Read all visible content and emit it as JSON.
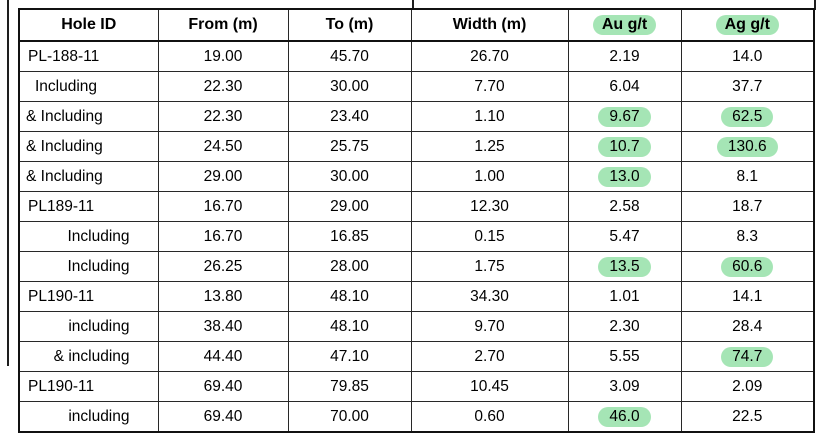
{
  "colors": {
    "highlight": "#a5e5b5",
    "border": "#1e1e1e",
    "text": "#000000"
  },
  "table": {
    "columns": [
      {
        "label": "Hole ID",
        "highlight": false
      },
      {
        "label": "From (m)",
        "highlight": false
      },
      {
        "label": "To (m)",
        "highlight": false
      },
      {
        "label": "Width (m)",
        "highlight": false
      },
      {
        "label": "Au g/t",
        "highlight": true
      },
      {
        "label": "Ag g/t",
        "highlight": true
      }
    ],
    "rows": [
      {
        "hole": "PL-188-11",
        "align": "left",
        "from": "19.00",
        "to": "45.70",
        "width": "26.70",
        "au": "2.19",
        "ag": "14.0",
        "au_hl": false,
        "ag_hl": false
      },
      {
        "hole": "Including",
        "align": "ind",
        "from": "22.30",
        "to": "30.00",
        "width": "7.70",
        "au": "6.04",
        "ag": "37.7",
        "au_hl": false,
        "ag_hl": false
      },
      {
        "hole": "& Including",
        "align": "amp",
        "from": "22.30",
        "to": "23.40",
        "width": "1.10",
        "au": "9.67",
        "ag": "62.5",
        "au_hl": true,
        "ag_hl": true
      },
      {
        "hole": "& Including",
        "align": "amp",
        "from": "24.50",
        "to": "25.75",
        "width": "1.25",
        "au": "10.7",
        "ag": "130.6",
        "au_hl": true,
        "ag_hl": true
      },
      {
        "hole": "& Including",
        "align": "amp",
        "from": "29.00",
        "to": "30.00",
        "width": "1.00",
        "au": "13.0",
        "ag": "8.1",
        "au_hl": true,
        "ag_hl": false
      },
      {
        "hole": "PL189-11",
        "align": "left",
        "from": "16.70",
        "to": "29.00",
        "width": "12.30",
        "au": "2.58",
        "ag": "18.7",
        "au_hl": false,
        "ag_hl": false
      },
      {
        "hole": "Including",
        "align": "right",
        "from": "16.70",
        "to": "16.85",
        "width": "0.15",
        "au": "5.47",
        "ag": "8.3",
        "au_hl": false,
        "ag_hl": false
      },
      {
        "hole": "Including",
        "align": "right",
        "from": "26.25",
        "to": "28.00",
        "width": "1.75",
        "au": "13.5",
        "ag": "60.6",
        "au_hl": true,
        "ag_hl": true
      },
      {
        "hole": "PL190-11",
        "align": "left",
        "from": "13.80",
        "to": "48.10",
        "width": "34.30",
        "au": "1.01",
        "ag": "14.1",
        "au_hl": false,
        "ag_hl": false
      },
      {
        "hole": "including",
        "align": "right",
        "from": "38.40",
        "to": "48.10",
        "width": "9.70",
        "au": "2.30",
        "ag": "28.4",
        "au_hl": false,
        "ag_hl": false
      },
      {
        "hole": "& including",
        "align": "right",
        "from": "44.40",
        "to": "47.10",
        "width": "2.70",
        "au": "5.55",
        "ag": "74.7",
        "au_hl": false,
        "ag_hl": true
      },
      {
        "hole": "PL190-11",
        "align": "left",
        "from": "69.40",
        "to": "79.85",
        "width": "10.45",
        "au": "3.09",
        "ag": "2.09",
        "au_hl": false,
        "ag_hl": false
      },
      {
        "hole": "including",
        "align": "right",
        "from": "69.40",
        "to": "70.00",
        "width": "0.60",
        "au": "46.0",
        "ag": "22.5",
        "au_hl": true,
        "ag_hl": false
      }
    ]
  }
}
